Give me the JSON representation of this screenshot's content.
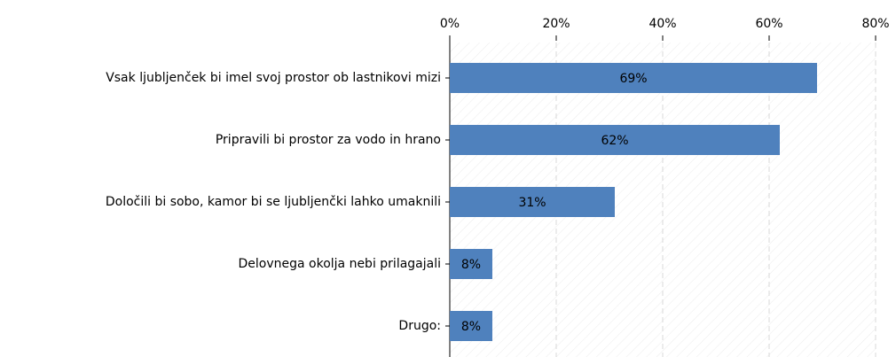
{
  "chart_data": {
    "type": "bar",
    "orientation": "horizontal",
    "categories": [
      "Vsak ljubljenček bi imel svoj prostor ob lastnikovi mizi",
      "Pripravili bi prostor za vodo in hrano",
      "Določili bi sobo, kamor bi se ljubljenčki lahko umaknili",
      "Delovnega okolja nebi prilagajali",
      "Drugo:"
    ],
    "values": [
      69,
      62,
      31,
      8,
      8
    ],
    "value_labels": [
      "69%",
      "62%",
      "31%",
      "8%",
      "8%"
    ],
    "color": "#4f81bd",
    "xlim": [
      0,
      80
    ],
    "xticks": [
      {
        "value": 0,
        "label": "0%"
      },
      {
        "value": 20,
        "label": "20%"
      },
      {
        "value": 40,
        "label": "40%"
      },
      {
        "value": 60,
        "label": "60%"
      },
      {
        "value": 80,
        "label": "80%"
      }
    ],
    "grid": true
  }
}
